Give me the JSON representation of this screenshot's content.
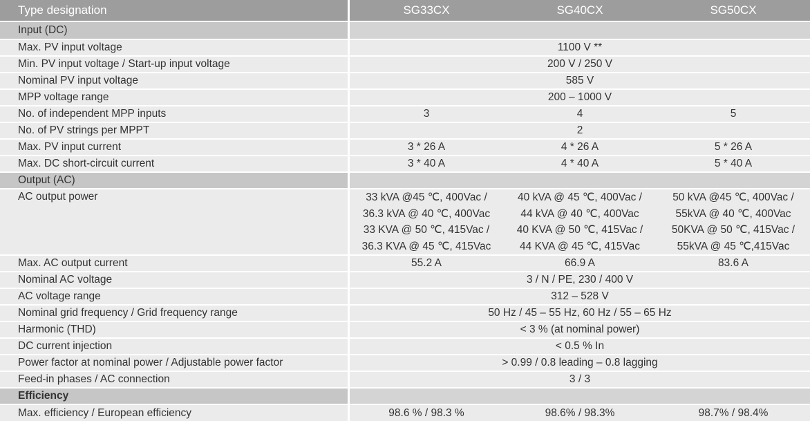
{
  "header": {
    "label": "Type designation",
    "models": [
      "SG33CX",
      "SG40CX",
      "SG50CX"
    ]
  },
  "sections": {
    "input": "Input (DC)",
    "output": "Output (AC)",
    "efficiency": "Efficiency"
  },
  "input_rows": {
    "max_pv_voltage": {
      "label": "Max. PV input voltage",
      "value": "1100 V **"
    },
    "min_pv_voltage": {
      "label": "Min. PV input voltage / Start-up input voltage",
      "value": "200 V / 250 V"
    },
    "nominal_pv_voltage": {
      "label": "Nominal PV input voltage",
      "value": "585 V"
    },
    "mpp_range": {
      "label": "MPP voltage range",
      "value": "200 – 1000 V"
    },
    "mpp_inputs": {
      "label": "No. of independent MPP inputs",
      "values": [
        "3",
        "4",
        "5"
      ]
    },
    "pv_strings": {
      "label": "No. of PV strings per MPPT",
      "value": "2"
    },
    "max_pv_current": {
      "label": "Max. PV input current",
      "values": [
        "3 * 26 A",
        "4 * 26 A",
        "5 * 26 A"
      ]
    },
    "max_dc_sc_current": {
      "label": "Max. DC short-circuit current",
      "values": [
        "3 * 40 A",
        "4 * 40 A",
        "5 * 40 A"
      ]
    }
  },
  "output_rows": {
    "ac_power": {
      "label": "AC output power",
      "values": [
        [
          "33 kVA @45 ℃, 400Vac /",
          "36.3 kVA @ 40 ℃, 400Vac",
          "33 KVA @ 50 ℃, 415Vac /",
          "36.3 KVA @ 45 ℃, 415Vac"
        ],
        [
          "40 kVA @ 45 ℃, 400Vac /",
          "44 kVA @ 40 ℃, 400Vac",
          "40 KVA @ 50 ℃, 415Vac /",
          "44 KVA @ 45 ℃, 415Vac"
        ],
        [
          "50 kVA @45 ℃, 400Vac /",
          "55kVA @ 40 ℃, 400Vac",
          "50KVA @ 50 ℃, 415Vac /",
          "55kVA @ 45 ℃,415Vac"
        ]
      ]
    },
    "max_ac_current": {
      "label": "Max. AC output current",
      "values": [
        "55.2 A",
        "66.9 A",
        "83.6 A"
      ]
    },
    "nominal_ac_voltage": {
      "label": "Nominal AC voltage",
      "value": "3 / N / PE, 230 / 400 V"
    },
    "ac_voltage_range": {
      "label": "AC voltage range",
      "value": "312 – 528 V"
    },
    "grid_frequency": {
      "label": "Nominal grid frequency / Grid frequency range",
      "value": "50 Hz / 45 – 55 Hz, 60 Hz / 55 – 65 Hz"
    },
    "thd": {
      "label": "Harmonic (THD)",
      "value": "< 3 % (at nominal power)"
    },
    "dc_injection": {
      "label": "DC current injection",
      "value": "< 0.5 % In"
    },
    "power_factor": {
      "label": "Power factor at nominal power / Adjustable power factor",
      "value": "> 0.99 / 0.8 leading – 0.8 lagging"
    },
    "feed_in": {
      "label": "Feed-in phases / AC connection",
      "value": "3 / 3"
    }
  },
  "efficiency_rows": {
    "max_eff": {
      "label": "Max. efficiency / European efficiency",
      "values": [
        "98.6 % / 98.3 %",
        "98.6% / 98.3%",
        "98.7% / 98.4%"
      ]
    }
  }
}
